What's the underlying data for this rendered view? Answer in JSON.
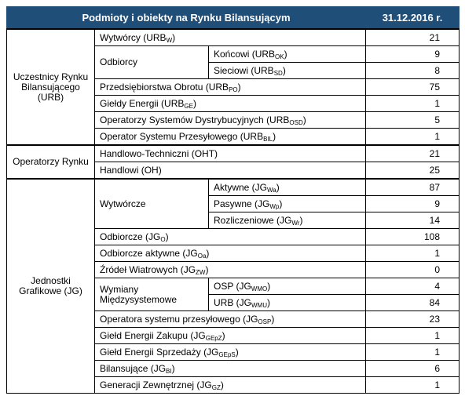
{
  "header": {
    "title": "Podmioty i obiekty na Rynku Bilansującym",
    "date": "31.12.2016 r."
  },
  "groups": [
    {
      "label": "Uczestnicy Rynku Bilansującego (URB)",
      "rows": [
        {
          "label": {
            "main": "Wytwórcy (URB",
            "sub": "W",
            "end": ")"
          },
          "value": 21
        },
        {
          "label": {
            "main": "Odbiorcy"
          },
          "items": [
            {
              "label": {
                "main": "Końcowi (URB",
                "sub": "OK",
                "end": ")"
              },
              "value": 9
            },
            {
              "label": {
                "main": "Sieciowi (URB",
                "sub": "SD",
                "end": ")"
              },
              "value": 8
            }
          ]
        },
        {
          "label": {
            "main": "Przedsiębiorstwa Obrotu (URB",
            "sub": "PO",
            "end": ")"
          },
          "value": 75
        },
        {
          "label": {
            "main": "Giełdy Energii (URB",
            "sub": "GE",
            "end": ")"
          },
          "value": 1
        },
        {
          "label": {
            "main": "Operatorzy Systemów Dystrybucyjnych (URB",
            "sub": "OSD",
            "end": ")"
          },
          "value": 5
        },
        {
          "label": {
            "main": "Operator Systemu Przesyłowego (URB",
            "sub": "BIL",
            "end": ")"
          },
          "value": 1
        }
      ]
    },
    {
      "label": "Operatorzy Rynku",
      "rows": [
        {
          "label": {
            "main": "Handlowo-Techniczni (OHT)"
          },
          "value": 21
        },
        {
          "label": {
            "main": "Handlowi (OH)"
          },
          "value": 25
        }
      ]
    },
    {
      "label": "Jednostki Grafikowe (JG)",
      "rows": [
        {
          "label": {
            "main": "Wytwórcze"
          },
          "items": [
            {
              "label": {
                "main": "Aktywne (JG",
                "sub": "Wa",
                "end": ")"
              },
              "value": 87
            },
            {
              "label": {
                "main": "Pasywne (JG",
                "sub": "Wp",
                "end": ")"
              },
              "value": 9
            },
            {
              "label": {
                "main": "Rozliczeniowe (JG",
                "sub": "Wr",
                "end": ")"
              },
              "value": 14
            }
          ]
        },
        {
          "label": {
            "main": "Odbiorcze (JG",
            "sub": "O",
            "end": ")"
          },
          "value": 108
        },
        {
          "label": {
            "main": "Odbiorcze aktywne (JG",
            "sub": "Oa",
            "end": ")"
          },
          "value": 1
        },
        {
          "label": {
            "main": "Źródeł Wiatrowych (JG",
            "sub": "ZW",
            "end": ")"
          },
          "value": 0
        },
        {
          "label": {
            "main": "Wymiany Międzysystemowe"
          },
          "items": [
            {
              "label": {
                "main": "OSP (JG",
                "sub": "WMO",
                "end": ")"
              },
              "value": 4
            },
            {
              "label": {
                "main": "URB (JG",
                "sub": "WMU",
                "end": ")"
              },
              "value": 84
            }
          ]
        },
        {
          "label": {
            "main": "Operatora systemu przesyłowego (JG",
            "sub": "OSP",
            "end": ")"
          },
          "value": 23
        },
        {
          "label": {
            "main": "Giełd Energii Zakupu (JG",
            "sub": "GEpZ",
            "end": ")"
          },
          "value": 1
        },
        {
          "label": {
            "main": "Giełd Energii Sprzedaży (JG",
            "sub": "GEpS",
            "end": ")"
          },
          "value": 1
        },
        {
          "label": {
            "main": "Bilansujące (JG",
            "sub": "BI",
            "end": ")"
          },
          "value": 6
        },
        {
          "label": {
            "main": "Generacji Zewnętrznej (JG",
            "sub": "GZ",
            "end": ")"
          },
          "value": 1
        }
      ]
    }
  ]
}
